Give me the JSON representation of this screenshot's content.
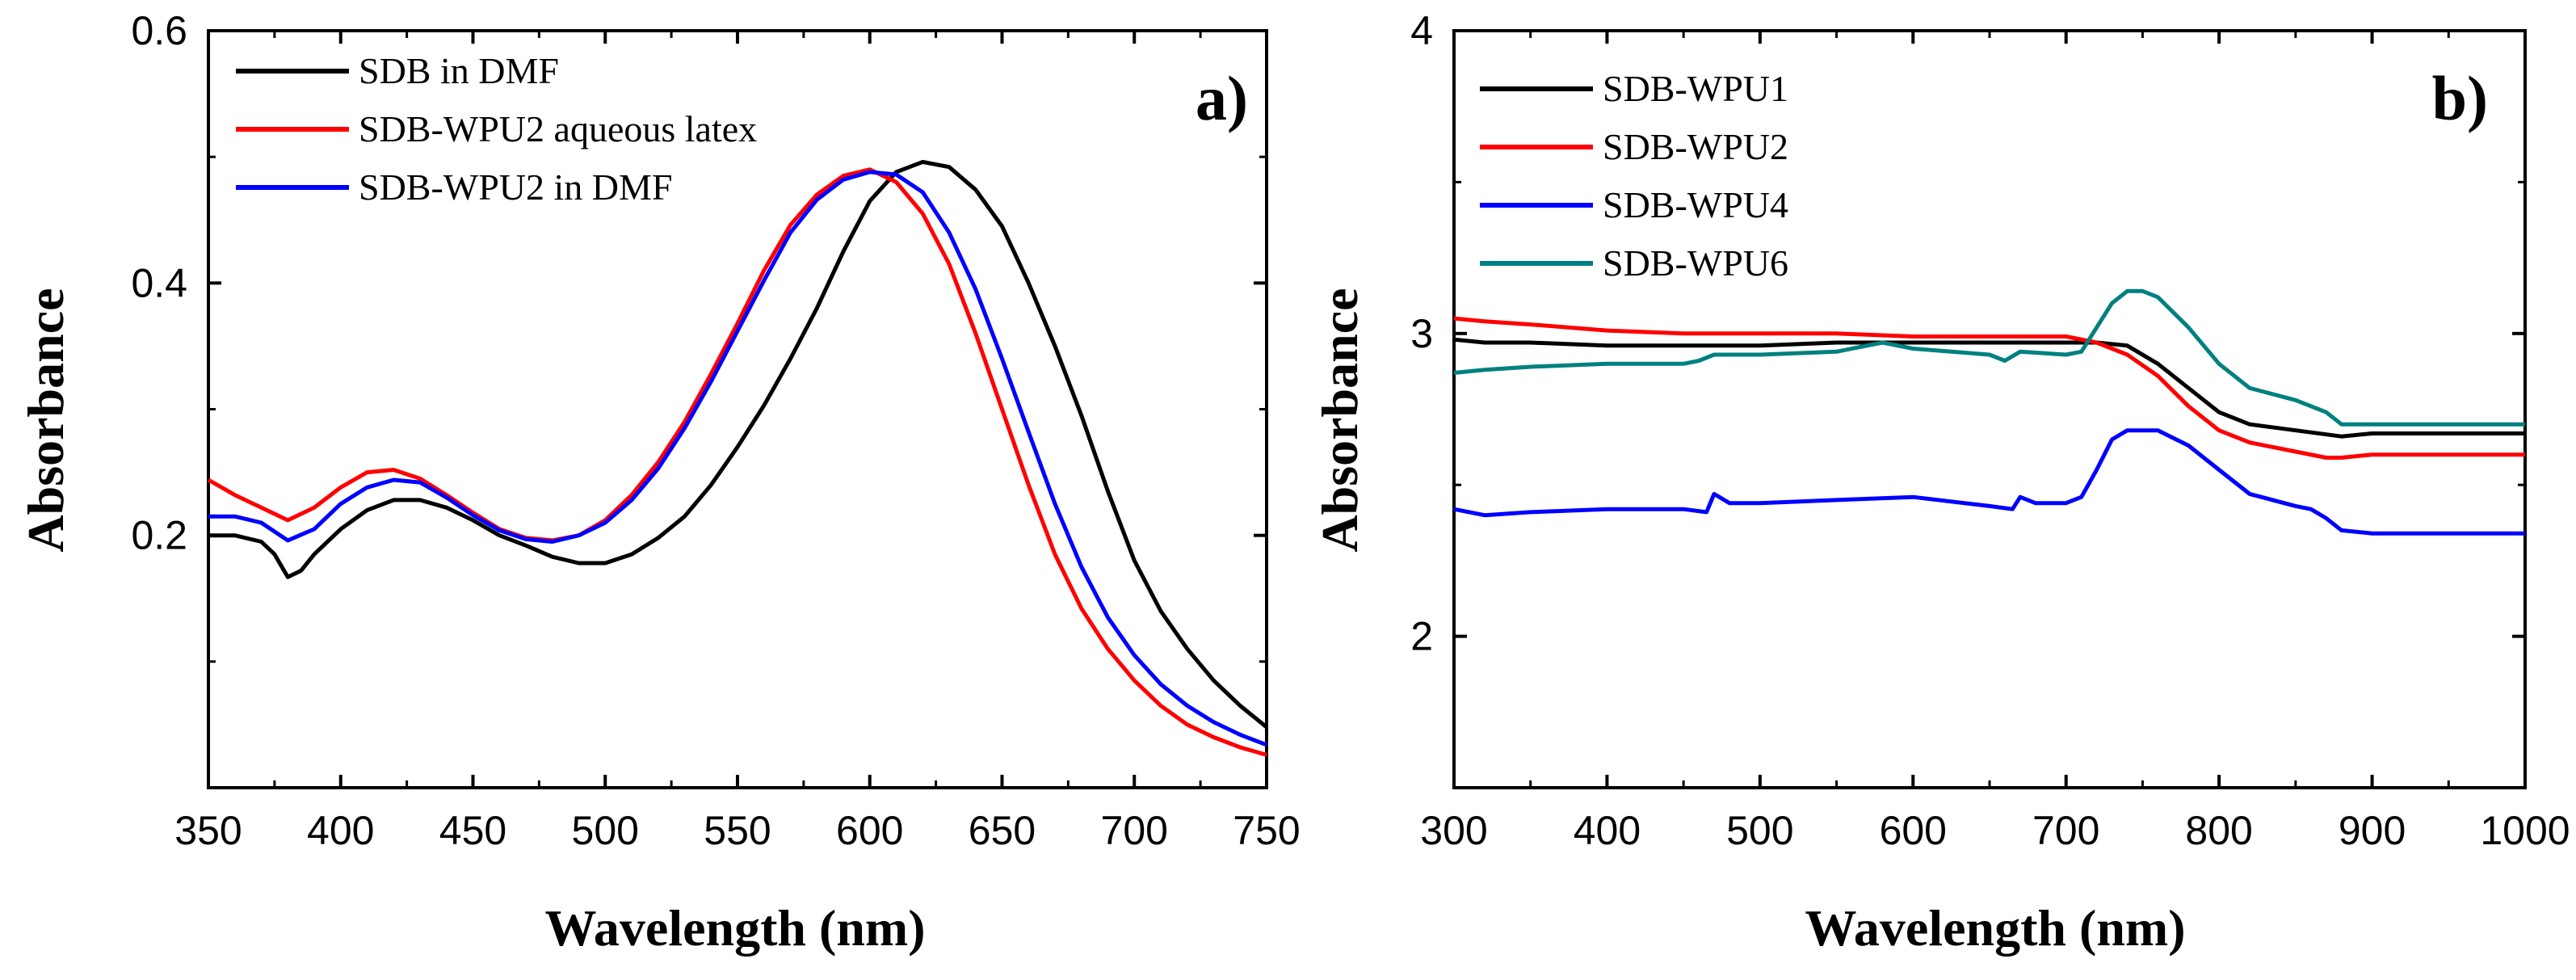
{
  "chart_data": [
    {
      "type": "line",
      "panel_label": "a)",
      "xlabel": "Wavelength (nm)",
      "ylabel": "Absorbance",
      "xlim": [
        350,
        750
      ],
      "ylim": [
        0.0,
        0.6
      ],
      "xticks": [
        350,
        400,
        450,
        500,
        550,
        600,
        650,
        700,
        750
      ],
      "xtick_labels": [
        "350",
        "400",
        "450",
        "500",
        "550",
        "600",
        "650",
        "700",
        "750"
      ],
      "yticks": [
        0.2,
        0.4,
        0.6
      ],
      "ytick_labels": [
        "0.2",
        "0.4",
        "0.6"
      ],
      "legend_position": "top-left",
      "series": [
        {
          "name": "SDB in DMF",
          "color": "#000000",
          "x": [
            350,
            360,
            370,
            375,
            380,
            385,
            390,
            400,
            410,
            420,
            430,
            440,
            450,
            460,
            470,
            480,
            490,
            500,
            510,
            520,
            530,
            540,
            550,
            560,
            570,
            580,
            590,
            600,
            610,
            620,
            630,
            640,
            650,
            660,
            670,
            680,
            690,
            700,
            710,
            720,
            730,
            740,
            750
          ],
          "y": [
            0.2,
            0.2,
            0.195,
            0.185,
            0.167,
            0.172,
            0.185,
            0.205,
            0.22,
            0.228,
            0.228,
            0.222,
            0.212,
            0.2,
            0.192,
            0.183,
            0.178,
            0.178,
            0.185,
            0.198,
            0.215,
            0.24,
            0.27,
            0.303,
            0.34,
            0.38,
            0.425,
            0.465,
            0.488,
            0.496,
            0.492,
            0.474,
            0.445,
            0.4,
            0.35,
            0.295,
            0.235,
            0.18,
            0.14,
            0.11,
            0.085,
            0.065,
            0.048
          ]
        },
        {
          "name": "SDB-WPU2 aqueous latex",
          "color": "#ff0000",
          "x": [
            350,
            355,
            360,
            370,
            380,
            390,
            400,
            410,
            420,
            430,
            440,
            450,
            460,
            470,
            480,
            490,
            500,
            510,
            520,
            530,
            540,
            550,
            560,
            570,
            580,
            590,
            600,
            610,
            620,
            630,
            640,
            650,
            660,
            670,
            680,
            690,
            700,
            710,
            720,
            730,
            740,
            750
          ],
          "y": [
            0.244,
            0.238,
            0.232,
            0.222,
            0.212,
            0.222,
            0.238,
            0.25,
            0.252,
            0.245,
            0.232,
            0.218,
            0.205,
            0.198,
            0.196,
            0.2,
            0.212,
            0.232,
            0.258,
            0.29,
            0.328,
            0.368,
            0.41,
            0.446,
            0.47,
            0.485,
            0.49,
            0.48,
            0.455,
            0.415,
            0.36,
            0.3,
            0.24,
            0.185,
            0.142,
            0.11,
            0.085,
            0.065,
            0.05,
            0.04,
            0.032,
            0.026
          ]
        },
        {
          "name": "SDB-WPU2 in DMF",
          "color": "#0000ff",
          "x": [
            350,
            360,
            370,
            380,
            390,
            400,
            410,
            420,
            430,
            440,
            450,
            460,
            470,
            480,
            490,
            500,
            510,
            520,
            530,
            540,
            550,
            560,
            570,
            580,
            590,
            600,
            610,
            620,
            630,
            640,
            650,
            660,
            670,
            680,
            690,
            700,
            710,
            720,
            730,
            740,
            750
          ],
          "y": [
            0.215,
            0.215,
            0.21,
            0.196,
            0.205,
            0.225,
            0.238,
            0.244,
            0.242,
            0.23,
            0.216,
            0.204,
            0.197,
            0.195,
            0.2,
            0.21,
            0.228,
            0.253,
            0.285,
            0.322,
            0.362,
            0.402,
            0.44,
            0.466,
            0.482,
            0.488,
            0.486,
            0.472,
            0.44,
            0.395,
            0.34,
            0.282,
            0.225,
            0.175,
            0.135,
            0.105,
            0.082,
            0.065,
            0.052,
            0.042,
            0.034
          ]
        }
      ]
    },
    {
      "type": "line",
      "panel_label": "b)",
      "xlabel": "Wavelength (nm)",
      "ylabel": "Absorbance",
      "xlim": [
        300,
        1000
      ],
      "ylim": [
        1.5,
        4.0
      ],
      "xticks": [
        300,
        400,
        500,
        600,
        700,
        800,
        900,
        1000
      ],
      "xtick_labels": [
        "300",
        "400",
        "500",
        "600",
        "700",
        "800",
        "900",
        "1000"
      ],
      "yticks": [
        2,
        3,
        4
      ],
      "ytick_labels": [
        "2",
        "3",
        "4"
      ],
      "legend_position": "top-left",
      "series": [
        {
          "name": "SDB-WPU1",
          "color": "#000000",
          "x": [
            300,
            320,
            350,
            400,
            450,
            500,
            550,
            600,
            650,
            700,
            720,
            740,
            760,
            780,
            800,
            820,
            850,
            880,
            900,
            950,
            1000
          ],
          "y": [
            2.98,
            2.97,
            2.97,
            2.96,
            2.96,
            2.96,
            2.97,
            2.97,
            2.97,
            2.97,
            2.97,
            2.96,
            2.9,
            2.82,
            2.74,
            2.7,
            2.68,
            2.66,
            2.67,
            2.67,
            2.67
          ]
        },
        {
          "name": "SDB-WPU2",
          "color": "#ff0000",
          "x": [
            300,
            320,
            350,
            400,
            450,
            500,
            550,
            600,
            650,
            700,
            720,
            740,
            760,
            780,
            800,
            820,
            850,
            870,
            880,
            900,
            950,
            1000
          ],
          "y": [
            3.05,
            3.04,
            3.03,
            3.01,
            3.0,
            3.0,
            3.0,
            2.99,
            2.99,
            2.99,
            2.97,
            2.93,
            2.86,
            2.76,
            2.68,
            2.64,
            2.61,
            2.59,
            2.59,
            2.6,
            2.6,
            2.6
          ]
        },
        {
          "name": "SDB-WPU4",
          "color": "#0000ff",
          "x": [
            300,
            320,
            350,
            400,
            450,
            465,
            470,
            480,
            500,
            550,
            600,
            650,
            665,
            670,
            680,
            700,
            710,
            720,
            730,
            740,
            760,
            780,
            800,
            820,
            850,
            860,
            870,
            880,
            900,
            950,
            1000
          ],
          "y": [
            2.42,
            2.4,
            2.41,
            2.42,
            2.42,
            2.41,
            2.47,
            2.44,
            2.44,
            2.45,
            2.46,
            2.43,
            2.42,
            2.46,
            2.44,
            2.44,
            2.46,
            2.55,
            2.65,
            2.68,
            2.68,
            2.63,
            2.55,
            2.47,
            2.43,
            2.42,
            2.39,
            2.35,
            2.34,
            2.34,
            2.34
          ]
        },
        {
          "name": "SDB-WPU6",
          "color": "#008080",
          "x": [
            300,
            320,
            350,
            400,
            450,
            460,
            470,
            500,
            550,
            580,
            600,
            650,
            660,
            670,
            700,
            710,
            720,
            730,
            740,
            750,
            760,
            780,
            800,
            820,
            850,
            870,
            880,
            900,
            950,
            1000
          ],
          "y": [
            2.87,
            2.88,
            2.89,
            2.9,
            2.9,
            2.91,
            2.93,
            2.93,
            2.94,
            2.97,
            2.95,
            2.93,
            2.91,
            2.94,
            2.93,
            2.94,
            3.02,
            3.1,
            3.14,
            3.14,
            3.12,
            3.02,
            2.9,
            2.82,
            2.78,
            2.74,
            2.7,
            2.7,
            2.7,
            2.7
          ]
        }
      ]
    }
  ]
}
